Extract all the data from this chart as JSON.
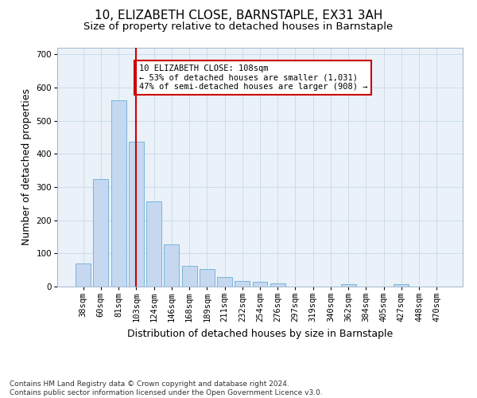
{
  "title": "10, ELIZABETH CLOSE, BARNSTAPLE, EX31 3AH",
  "subtitle": "Size of property relative to detached houses in Barnstaple",
  "xlabel": "Distribution of detached houses by size in Barnstaple",
  "ylabel": "Number of detached properties",
  "categories": [
    "38sqm",
    "60sqm",
    "81sqm",
    "103sqm",
    "124sqm",
    "146sqm",
    "168sqm",
    "189sqm",
    "211sqm",
    "232sqm",
    "254sqm",
    "276sqm",
    "297sqm",
    "319sqm",
    "340sqm",
    "362sqm",
    "384sqm",
    "405sqm",
    "427sqm",
    "448sqm",
    "470sqm"
  ],
  "values": [
    70,
    325,
    562,
    437,
    258,
    128,
    62,
    53,
    30,
    18,
    14,
    10,
    0,
    0,
    0,
    7,
    0,
    0,
    7,
    0,
    0
  ],
  "bar_color": "#c5d8f0",
  "bar_edge_color": "#6aaed6",
  "vline_x": 3,
  "vline_color": "#cc0000",
  "annotation_text": "10 ELIZABETH CLOSE: 108sqm\n← 53% of detached houses are smaller (1,031)\n47% of semi-detached houses are larger (908) →",
  "annotation_box_color": "#ffffff",
  "annotation_box_edge": "#cc0000",
  "ylim": [
    0,
    720
  ],
  "yticks": [
    0,
    100,
    200,
    300,
    400,
    500,
    600,
    700
  ],
  "footer_text": "Contains HM Land Registry data © Crown copyright and database right 2024.\nContains public sector information licensed under the Open Government Licence v3.0.",
  "background_color": "#ffffff",
  "grid_color": "#c8d8e8",
  "title_fontsize": 11,
  "subtitle_fontsize": 9.5,
  "axis_label_fontsize": 9,
  "tick_fontsize": 7.5,
  "annotation_fontsize": 7.5,
  "footer_fontsize": 6.5
}
